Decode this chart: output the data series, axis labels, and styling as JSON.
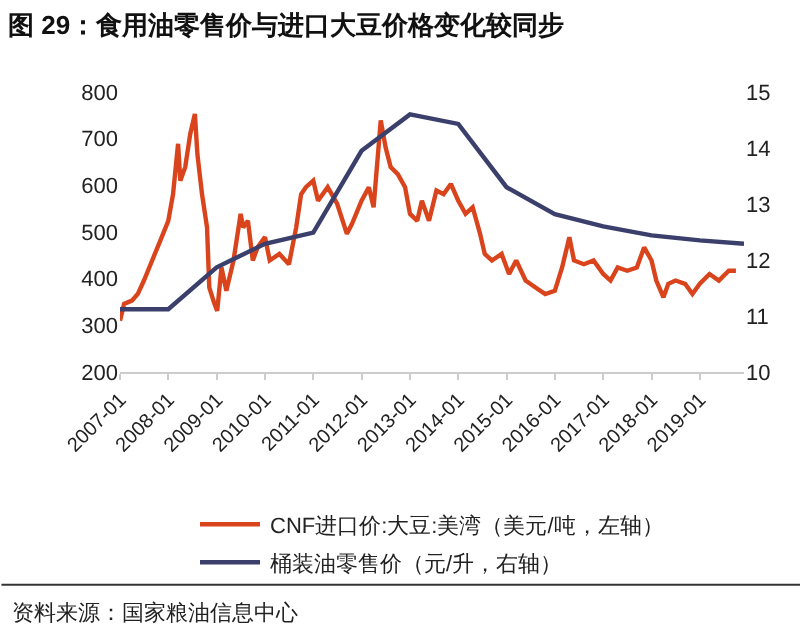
{
  "chart_data": {
    "type": "line",
    "title": "图 29：食用油零售价与进口大豆价格变化较同步",
    "annotations": [
      "资料来源：国家粮油信息中心"
    ],
    "xlim": [
      "2007-01",
      "2019-12"
    ],
    "xticks": [
      "2007-01",
      "2008-01",
      "2009-01",
      "2010-01",
      "2011-01",
      "2012-01",
      "2013-01",
      "2014-01",
      "2015-01",
      "2016-01",
      "2017-01",
      "2018-01",
      "2019-01"
    ],
    "ylim": [
      200,
      800
    ],
    "yticks": [
      200,
      300,
      400,
      500,
      600,
      700,
      800
    ],
    "y2lim": [
      10,
      15
    ],
    "y2ticks": [
      10,
      11,
      12,
      13,
      14,
      15
    ],
    "legend": "bottom",
    "grid": false,
    "marker": "none",
    "series": [
      {
        "name": "CNF进口价:大豆:美湾（美元/吨，左轴）",
        "color": "#d9441c",
        "x": [
          "2007-01-01",
          "2007-02-01",
          "2007-04-01",
          "2007-05-15",
          "2007-07-01",
          "2007-09-01",
          "2007-11-01",
          "2008-01-01",
          "2008-02-06",
          "2008-03-15",
          "2008-04-01",
          "2008-05-08",
          "2008-06-15",
          "2008-07-20",
          "2008-08-08",
          "2008-09-12",
          "2008-10-20",
          "2008-11-06",
          "2008-12-15",
          "2009-01-05",
          "2009-02-06",
          "2009-03-15",
          "2009-05-08",
          "2009-07-01",
          "2009-07-20",
          "2009-08-25",
          "2009-10-01",
          "2009-11-06",
          "2010-01-01",
          "2010-02-06",
          "2010-04-20",
          "2010-07-01",
          "2010-08-25",
          "2010-10-01",
          "2010-11-06",
          "2011-01-01",
          "2011-02-06",
          "2011-04-20",
          "2011-07-01",
          "2011-09-12",
          "2011-10-20",
          "2012-01-01",
          "2012-02-25",
          "2012-04-01",
          "2012-05-25",
          "2012-07-01",
          "2012-08-08",
          "2012-10-01",
          "2012-11-25",
          "2013-01-01",
          "2013-02-25",
          "2013-04-01",
          "2013-05-25",
          "2013-07-20",
          "2013-09-12",
          "2013-11-06",
          "2014-01-01",
          "2014-02-25",
          "2014-04-20",
          "2014-06-15",
          "2014-07-20",
          "2014-09-12",
          "2014-11-25",
          "2015-01-20",
          "2015-03-15",
          "2015-05-25",
          "2015-08-08",
          "2015-10-20",
          "2016-01-01",
          "2016-02-25",
          "2016-04-20",
          "2016-05-25",
          "2016-08-08",
          "2016-10-20",
          "2017-01-01",
          "2017-02-25",
          "2017-04-20",
          "2017-07-01",
          "2017-09-12",
          "2017-11-06",
          "2018-01-01",
          "2018-02-06",
          "2018-04-01",
          "2018-05-08",
          "2018-07-01",
          "2018-09-12",
          "2018-11-06",
          "2019-01-01",
          "2019-03-15",
          "2019-05-25",
          "2019-08-08",
          "2019-10-01"
        ],
        "values": [
          310,
          346,
          353,
          367,
          396,
          439,
          481,
          524,
          581,
          689,
          610,
          639,
          710,
          753,
          667,
          581,
          510,
          381,
          346,
          331,
          424,
          374,
          439,
          539,
          510,
          524,
          439,
          467,
          489,
          439,
          453,
          431,
          510,
          581,
          596,
          610,
          567,
          596,
          560,
          496,
          517,
          567,
          596,
          553,
          739,
          681,
          639,
          624,
          596,
          539,
          524,
          567,
          524,
          589,
          581,
          603,
          567,
          539,
          553,
          496,
          453,
          439,
          453,
          410,
          439,
          396,
          381,
          367,
          374,
          424,
          489,
          439,
          431,
          439,
          410,
          396,
          424,
          417,
          424,
          467,
          439,
          396,
          360,
          389,
          396,
          389,
          367,
          389,
          410,
          396,
          417,
          417
        ]
      },
      {
        "name": "桶装油零售价（元/升，右轴）",
        "color": "#3b3f6b",
        "axis": "y2",
        "x": [
          "2007-01-01",
          "2008-01-01",
          "2009-01-01",
          "2010-01-01",
          "2011-01-01",
          "2012-01-01",
          "2013-01-01",
          "2014-01-01",
          "2015-01-01",
          "2016-01-01",
          "2017-01-01",
          "2018-01-01",
          "2019-01-01",
          "2019-12-01"
        ],
        "values": [
          11.12,
          11.12,
          11.87,
          12.29,
          12.49,
          13.95,
          14.6,
          14.43,
          13.3,
          12.82,
          12.6,
          12.44,
          12.35,
          12.29
        ]
      }
    ]
  }
}
